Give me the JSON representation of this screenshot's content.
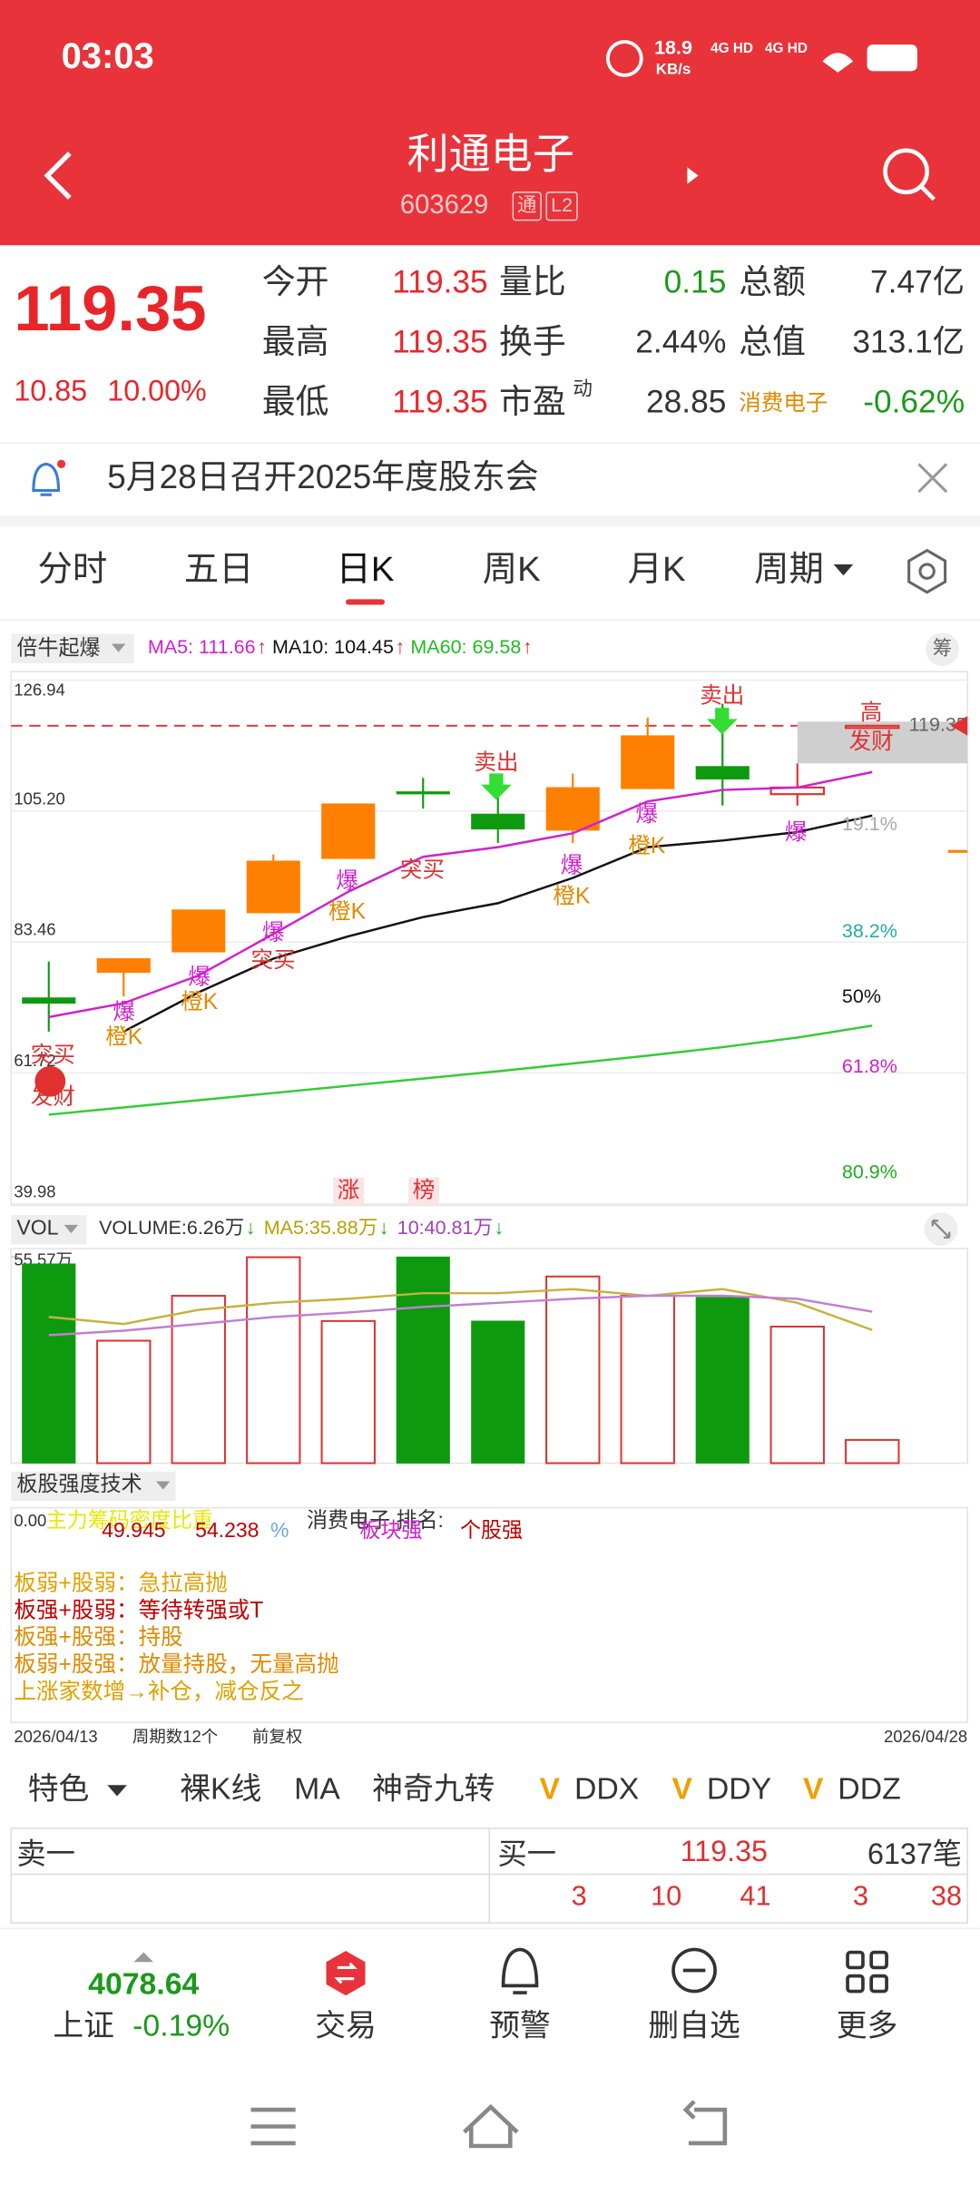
{
  "status": {
    "time": "03:03",
    "speed": "18.9",
    "speed_unit": "KB/s",
    "network": [
      "4G HD",
      "4G HD"
    ]
  },
  "header": {
    "name": "利通电子",
    "code": "603629",
    "badges": [
      "通",
      "L2"
    ]
  },
  "quote": {
    "price": "119.35",
    "change": "10.85",
    "change_pct": "10.00%",
    "fields": [
      {
        "label": "今开",
        "value": "119.35"
      },
      {
        "label": "最高",
        "value": "119.35"
      },
      {
        "label": "最低",
        "value": "119.35"
      },
      {
        "label": "量比",
        "value": "0.15"
      },
      {
        "label": "换手",
        "value": "2.44%"
      },
      {
        "label": "市盈",
        "sup": "动",
        "value": "28.85"
      },
      {
        "label": "总额",
        "value": "7.47亿"
      },
      {
        "label": "总值",
        "value": "313.1亿"
      },
      {
        "label": "消费电子",
        "value": "-0.62%"
      }
    ]
  },
  "notice": "5月28日召开2025年度股东会",
  "tabs": [
    "分时",
    "五日",
    "日K",
    "周K",
    "月K",
    "周期"
  ],
  "chart_data": [
    {
      "type": "candlestick",
      "indicator": "倍牛起爆",
      "side_button": "筹",
      "ma_labels": [
        {
          "text": "MA5: 111.66",
          "arrow": "↑"
        },
        {
          "text": "MA10: 104.45",
          "arrow": "↑"
        },
        {
          "text": "MA60: 69.58",
          "arrow": "↑"
        }
      ],
      "ylim": [
        39.98,
        126.94
      ],
      "yticks": [
        126.94,
        {
          "value": 105.2,
          "label": "105.20"
        },
        83.46,
        61.72,
        39.98
      ],
      "open": [
        74.2,
        78.4,
        81.8,
        88.3,
        97.3,
        108.4,
        104.7,
        102.0,
        108.9,
        112.6,
        108.0,
        119.35
      ],
      "high": [
        80.2,
        80.7,
        88.8,
        98.0,
        106.4,
        110.7,
        108.9,
        111.4,
        120.7,
        123.0,
        113.1,
        119.35
      ],
      "low": [
        68.6,
        74.4,
        81.8,
        88.3,
        97.3,
        105.6,
        99.9,
        99.9,
        108.9,
        106.1,
        106.1,
        119.35
      ],
      "close": [
        73.3,
        80.7,
        88.8,
        96.9,
        106.4,
        108.2,
        102.2,
        109.1,
        117.7,
        110.5,
        109.1,
        119.35
      ],
      "colors": [
        "#0e9a0e",
        "#ff8000",
        "#ff8000",
        "#ff8000",
        "#ff8000",
        "#0e9a0e",
        "#0e9a0e",
        "#ff8000",
        "#ff8000",
        "#0e9a0e",
        "#e03030",
        "#e03030"
      ],
      "series": [
        {
          "name": "MA5",
          "color": "#d020d0",
          "values": [
            71.0,
            73.3,
            77.9,
            84.8,
            91.8,
            97.6,
            99.2,
            101.5,
            106.8,
            108.7,
            109.1,
            111.66
          ]
        },
        {
          "name": "MA10",
          "color": "#111111",
          "values": [
            null,
            68.6,
            75.1,
            80.7,
            84.4,
            87.6,
            89.9,
            94.1,
            99.2,
            100.3,
            101.7,
            104.45
          ]
        },
        {
          "name": "MA60",
          "color": "#33cc33",
          "values": [
            54.8,
            56.0,
            57.2,
            58.4,
            59.6,
            60.8,
            62.0,
            63.3,
            64.6,
            66.0,
            67.6,
            69.58
          ]
        }
      ],
      "price_line": 119.35,
      "fib_labels": [
        {
          "text": "19.1%",
          "color": "#aaaaaa"
        },
        {
          "text": "38.2%",
          "color": "#22aaaa"
        },
        {
          "text": "50%",
          "color": "#111111"
        },
        {
          "text": "61.8%",
          "color": "#cc22cc"
        },
        {
          "text": "80.9%",
          "color": "#22aa22"
        }
      ],
      "annotations": [
        "突买",
        "发财",
        "爆",
        "橙K",
        "爆",
        "橙K",
        "爆",
        "突买",
        "爆",
        "橙K",
        "突买",
        "卖出",
        "爆",
        "橙K",
        "爆",
        "橙K",
        "卖出",
        "爆",
        "涨",
        "榜",
        "高",
        "发财"
      ]
    },
    {
      "type": "bar",
      "label": "VOL",
      "legend": [
        {
          "text": "VOLUME:6.26万",
          "arrow": "↓",
          "color": "#333333"
        },
        {
          "text": "MA5:35.88万",
          "arrow": "↓",
          "color": "#b8a000"
        },
        {
          "text": "10:40.81万",
          "arrow": "↓",
          "color": "#a040c0"
        }
      ],
      "ylim": [
        0,
        55.57
      ],
      "yticks": [
        {
          "value": 55.57,
          "label": "55.57万"
        }
      ],
      "values": [
        53.7,
        33.0,
        45.1,
        55.5,
        38.3,
        55.57,
        38.3,
        50.3,
        45.1,
        44.7,
        36.8,
        6.26
      ],
      "colors": [
        "#0e9a0e",
        "#e03030",
        "#e03030",
        "#e03030",
        "#e03030",
        "#0e9a0e",
        "#0e9a0e",
        "#e03030",
        "#e03030",
        "#0e9a0e",
        "#e03030",
        "#e03030"
      ],
      "series": [
        {
          "name": "MA5",
          "color": "#c8b040",
          "values": [
            39.4,
            37.5,
            41.3,
            43.2,
            44.3,
            45.8,
            45.8,
            46.9,
            45.1,
            46.9,
            43.2,
            35.88
          ]
        },
        {
          "name": "MA10",
          "color": "#c080d0",
          "values": [
            34.5,
            35.7,
            37.5,
            39.4,
            40.6,
            42.1,
            43.2,
            44.3,
            45.1,
            45.1,
            44.3,
            40.81
          ]
        }
      ]
    }
  ],
  "strength_panel": {
    "title": "板股强度技术",
    "axis_label": "0.00",
    "line_title": "主力筹码密度比重",
    "value_a": "49.945",
    "value_b": "54.238",
    "unit": "%",
    "rank_label": "消费电子 排名:",
    "sector_state": "板块强",
    "stock_state": "个股强",
    "rules": [
      "板弱+股弱：急拉高抛",
      "板强+股弱：等待转强或T",
      "板强+股强：持股",
      "板弱+股强：放量持股，无量高抛",
      "上涨家数增→补仓，减仓反之"
    ]
  },
  "footer": {
    "start": "2026/04/13",
    "periods": "周期数12个",
    "adjust": "前复权",
    "end": "2026/04/28"
  },
  "toolbar": {
    "items": [
      "特色",
      "裸K线",
      "MA",
      "神奇九转",
      "DDX",
      "DDY",
      "DDZ"
    ],
    "marker": "V"
  },
  "order_book": {
    "sell_label": "卖一",
    "buy_label": "买一",
    "buy_price": "119.35",
    "orders": "6137笔",
    "levels": [
      "3",
      "10",
      "41",
      "3",
      "38"
    ]
  },
  "bottom_nav": {
    "index_value": "4078.64",
    "index_name": "上证",
    "index_change": "-0.19%",
    "items": [
      "交易",
      "预警",
      "删自选",
      "更多"
    ]
  }
}
